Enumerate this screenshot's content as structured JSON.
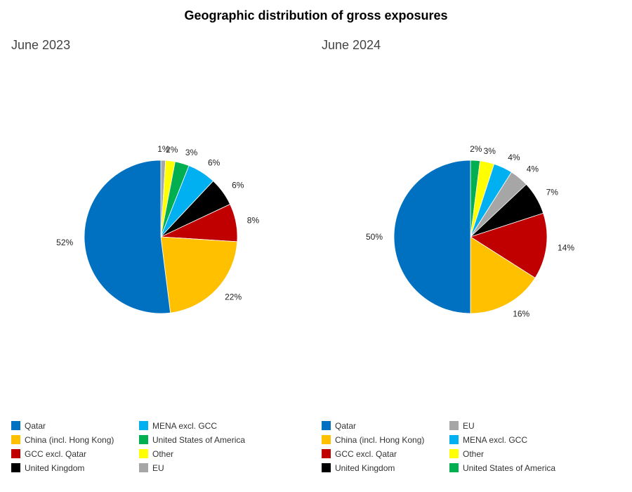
{
  "title": "Geographic distribution of gross exposures",
  "chart_data": [
    {
      "type": "pie",
      "title": "June 2023",
      "slices": [
        {
          "name": "EU",
          "value": 1,
          "label": "1%",
          "color": "#a6a6a6"
        },
        {
          "name": "Other",
          "value": 2,
          "label": "2%",
          "color": "#ffff00"
        },
        {
          "name": "United States of America",
          "value": 3,
          "label": "3%",
          "color": "#00b050"
        },
        {
          "name": "MENA excl. GCC",
          "value": 6,
          "label": "6%",
          "color": "#00b0f0"
        },
        {
          "name": "United Kingdom",
          "value": 6,
          "label": "6%",
          "color": "#000000"
        },
        {
          "name": "GCC excl. Qatar",
          "value": 8,
          "label": "8%",
          "color": "#c00000"
        },
        {
          "name": "China (incl. Hong Kong)",
          "value": 22,
          "label": "22%",
          "color": "#ffc000"
        },
        {
          "name": "Qatar",
          "value": 52,
          "label": "52%",
          "color": "#0070c0"
        }
      ],
      "legend": [
        {
          "label": "Qatar",
          "color": "#0070c0"
        },
        {
          "label": "China (incl. Hong Kong)",
          "color": "#ffc000"
        },
        {
          "label": "GCC excl. Qatar",
          "color": "#c00000"
        },
        {
          "label": "United Kingdom",
          "color": "#000000"
        },
        {
          "label": "MENA excl. GCC",
          "color": "#00b0f0"
        },
        {
          "label": "United States of America",
          "color": "#00b050"
        },
        {
          "label": "Other",
          "color": "#ffff00"
        },
        {
          "label": "EU",
          "color": "#a6a6a6"
        }
      ]
    },
    {
      "type": "pie",
      "title": "June 2024",
      "slices": [
        {
          "name": "United States of America",
          "value": 2,
          "label": "2%",
          "color": "#00b050"
        },
        {
          "name": "Other",
          "value": 3,
          "label": "3%",
          "color": "#ffff00"
        },
        {
          "name": "MENA excl. GCC",
          "value": 4,
          "label": "4%",
          "color": "#00b0f0"
        },
        {
          "name": "EU",
          "value": 4,
          "label": "4%",
          "color": "#a6a6a6"
        },
        {
          "name": "United Kingdom",
          "value": 7,
          "label": "7%",
          "color": "#000000"
        },
        {
          "name": "GCC excl. Qatar",
          "value": 14,
          "label": "14%",
          "color": "#c00000"
        },
        {
          "name": "China (incl. Hong Kong)",
          "value": 16,
          "label": "16%",
          "color": "#ffc000"
        },
        {
          "name": "Qatar",
          "value": 50,
          "label": "50%",
          "color": "#0070c0"
        }
      ],
      "legend": [
        {
          "label": "Qatar",
          "color": "#0070c0"
        },
        {
          "label": "China (incl. Hong Kong)",
          "color": "#ffc000"
        },
        {
          "label": "GCC excl. Qatar",
          "color": "#c00000"
        },
        {
          "label": "United Kingdom",
          "color": "#000000"
        },
        {
          "label": "EU",
          "color": "#a6a6a6"
        },
        {
          "label": "MENA excl. GCC",
          "color": "#00b0f0"
        },
        {
          "label": "Other",
          "color": "#ffff00"
        },
        {
          "label": "United States of America",
          "color": "#00b050"
        }
      ]
    }
  ]
}
